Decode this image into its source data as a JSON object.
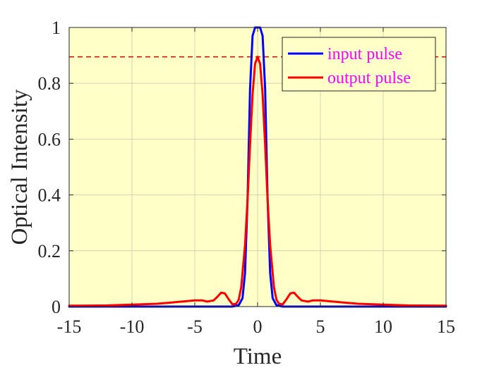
{
  "chart_data": {
    "type": "line",
    "title": "",
    "xlabel": "Time",
    "ylabel": "Optical Intensity",
    "xlim": [
      -15,
      15
    ],
    "ylim": [
      0,
      1
    ],
    "xticks": [
      -15,
      -10,
      -5,
      0,
      5,
      10,
      15
    ],
    "xtick_labels": [
      "-15",
      "-10",
      "-5",
      "0",
      "5",
      "10",
      "15"
    ],
    "yticks": [
      0,
      0.2,
      0.4,
      0.6,
      0.8,
      1
    ],
    "ytick_labels": [
      "0",
      "0.2",
      "0.4",
      "0.6",
      "0.8",
      "1"
    ],
    "grid": true,
    "background_color": "#ffffc8",
    "legend_position": "top-right",
    "legend_text_color": "#ff00ff",
    "reference_line": {
      "y": 0.895,
      "style": "dashed",
      "color": "#e00000"
    },
    "series": [
      {
        "name": "input pulse",
        "color": "#0000ff",
        "x": [
          -15,
          -2,
          -1.5,
          -1.2,
          -1.0,
          -0.8,
          -0.6,
          -0.4,
          -0.2,
          0,
          0.2,
          0.4,
          0.6,
          0.8,
          1.0,
          1.2,
          1.5,
          2,
          15
        ],
        "y": [
          0,
          0,
          0.005,
          0.03,
          0.12,
          0.38,
          0.78,
          0.97,
          1.0,
          1.0,
          1.0,
          0.97,
          0.78,
          0.38,
          0.12,
          0.03,
          0.005,
          0,
          0
        ]
      },
      {
        "name": "output pulse",
        "color": "#ff0000",
        "x": [
          -15,
          -12,
          -10,
          -8,
          -7,
          -6,
          -5,
          -4.4,
          -4,
          -3.5,
          -3.2,
          -2.9,
          -2.6,
          -2.3,
          -2.0,
          -1.7,
          -1.5,
          -1.3,
          -1.0,
          -0.8,
          -0.6,
          -0.4,
          -0.2,
          0,
          0.2,
          0.4,
          0.6,
          0.8,
          1.0,
          1.3,
          1.5,
          1.7,
          2.0,
          2.3,
          2.6,
          2.9,
          3.2,
          3.5,
          4,
          4.4,
          5,
          6,
          7,
          8,
          10,
          12,
          15
        ],
        "y": [
          0.003,
          0.004,
          0.007,
          0.01,
          0.014,
          0.018,
          0.022,
          0.022,
          0.018,
          0.022,
          0.035,
          0.05,
          0.047,
          0.026,
          0.008,
          0.01,
          0.025,
          0.07,
          0.22,
          0.38,
          0.58,
          0.76,
          0.87,
          0.895,
          0.87,
          0.76,
          0.58,
          0.38,
          0.22,
          0.07,
          0.025,
          0.01,
          0.008,
          0.026,
          0.047,
          0.05,
          0.035,
          0.022,
          0.018,
          0.022,
          0.022,
          0.018,
          0.014,
          0.01,
          0.007,
          0.004,
          0.003
        ]
      }
    ]
  }
}
